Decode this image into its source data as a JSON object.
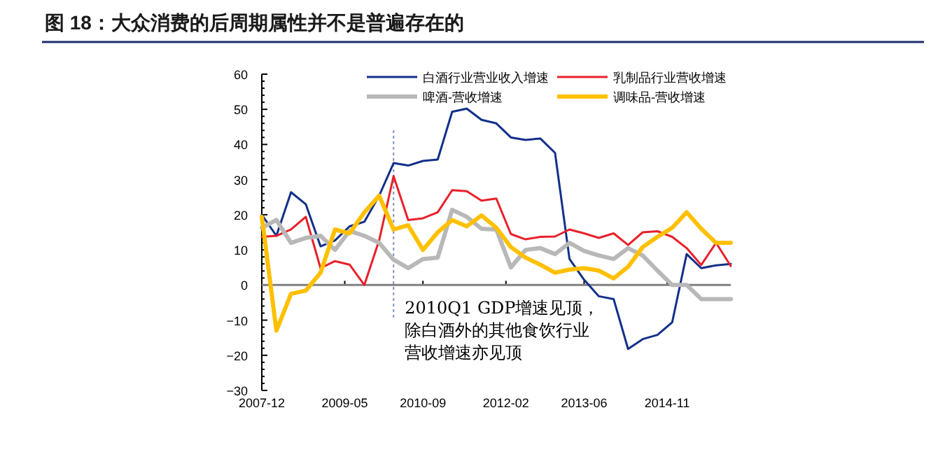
{
  "chart_data": {
    "type": "line",
    "title": "图 18：大众消费的后周期属性并不是普遍存在的",
    "x": [
      "2007-12-31",
      "2008-03-31",
      "2008-06-30",
      "2008-09-30",
      "2008-12-31",
      "2009-03-31",
      "2009-06-30",
      "2009-09-30",
      "2009-12-31",
      "2010-03-31",
      "2010-06-30",
      "2010-09-30",
      "2010-12-31",
      "2011-03-31",
      "2011-06-30",
      "2011-09-30",
      "2011-12-31",
      "2012-03-31",
      "2012-06-30",
      "2012-09-30",
      "2012-12-31",
      "2013-03-31",
      "2013-06-30",
      "2013-09-30",
      "2013-12-31",
      "2014-03-31",
      "2014-06-30",
      "2014-09-30",
      "2014-12-31",
      "2015-03-31",
      "2015-06-30",
      "2015-09-30",
      "2015-12-31"
    ],
    "series": [
      {
        "name": "白酒行业营业收入增速",
        "color": "#12308a",
        "values": [
          20,
          14,
          26.4,
          23,
          11,
          12.7,
          16.7,
          18,
          25.4,
          34.7,
          34,
          35.3,
          35.7,
          49.3,
          50.2,
          47,
          46,
          42,
          41.3,
          41.7,
          37.6,
          7.4,
          1.5,
          -3.2,
          -4,
          -18.2,
          -15.4,
          -14.2,
          -10.6,
          8.8,
          4.8,
          5.6,
          6
        ]
      },
      {
        "name": "乳制品行业营收增速",
        "color": "#e8202a",
        "values": [
          13.7,
          14,
          15.8,
          19.4,
          4.8,
          6.8,
          5.8,
          0,
          12.7,
          31,
          18.5,
          19,
          20.7,
          27,
          26.7,
          24,
          24.6,
          14.5,
          13,
          13.7,
          13.8,
          15.8,
          14.7,
          13.4,
          14.7,
          11.4,
          15,
          15.3,
          13.7,
          10.5,
          5.7,
          12,
          5.4
        ]
      },
      {
        "name": "啤酒-营收增速",
        "color": "#b8b8b8",
        "values": [
          16.3,
          18.5,
          12,
          13.4,
          14,
          10,
          15.4,
          14,
          12,
          7.2,
          4.8,
          7.4,
          7.8,
          21.4,
          19.4,
          16,
          15.8,
          5,
          10,
          10.5,
          8.8,
          12,
          9.7,
          8.4,
          7.4,
          10.5,
          8.4,
          4.1,
          0,
          0,
          -4,
          -4,
          -4
        ]
      },
      {
        "name": "调味品-营收增速",
        "color": "#ffc000",
        "values": [
          19.4,
          -13,
          -2.5,
          -1.6,
          3.5,
          15.8,
          14.7,
          20.7,
          25.4,
          15.8,
          17,
          10,
          15,
          18.5,
          16.7,
          19.8,
          16.3,
          10.8,
          7.8,
          5.8,
          3.5,
          4.4,
          4.8,
          4.1,
          1.9,
          5.2,
          10.8,
          13.7,
          16.3,
          20.7,
          16,
          12,
          12
        ]
      }
    ],
    "xlim": [
      "2007-12-31",
      "2015-12-31"
    ],
    "xticks": [
      {
        "value": "2007-12-31",
        "label": "2007-12"
      },
      {
        "value": "2009-05-31",
        "label": "2009-05"
      },
      {
        "value": "2010-09-30",
        "label": "2010-09"
      },
      {
        "value": "2012-02-29",
        "label": "2012-02"
      },
      {
        "value": "2013-06-30",
        "label": "2013-06"
      },
      {
        "value": "2014-11-30",
        "label": "2014-11"
      }
    ],
    "ylim": [
      -30,
      60
    ],
    "yticks": [
      -30,
      -20,
      -10,
      0,
      10,
      20,
      30,
      40,
      50,
      60
    ],
    "ref_lines": [
      {
        "axis": "x",
        "value": "2010-03-31",
        "label": "2010Q1 GDP增速见顶，除白酒外的其他食饮行业营收增速亦见顶",
        "color": "#8090c8",
        "line_style": "dotted"
      },
      {
        "axis": "y",
        "value": 0,
        "color": "#808080",
        "line_style": "solid"
      }
    ],
    "legend": "top",
    "grid": false
  }
}
